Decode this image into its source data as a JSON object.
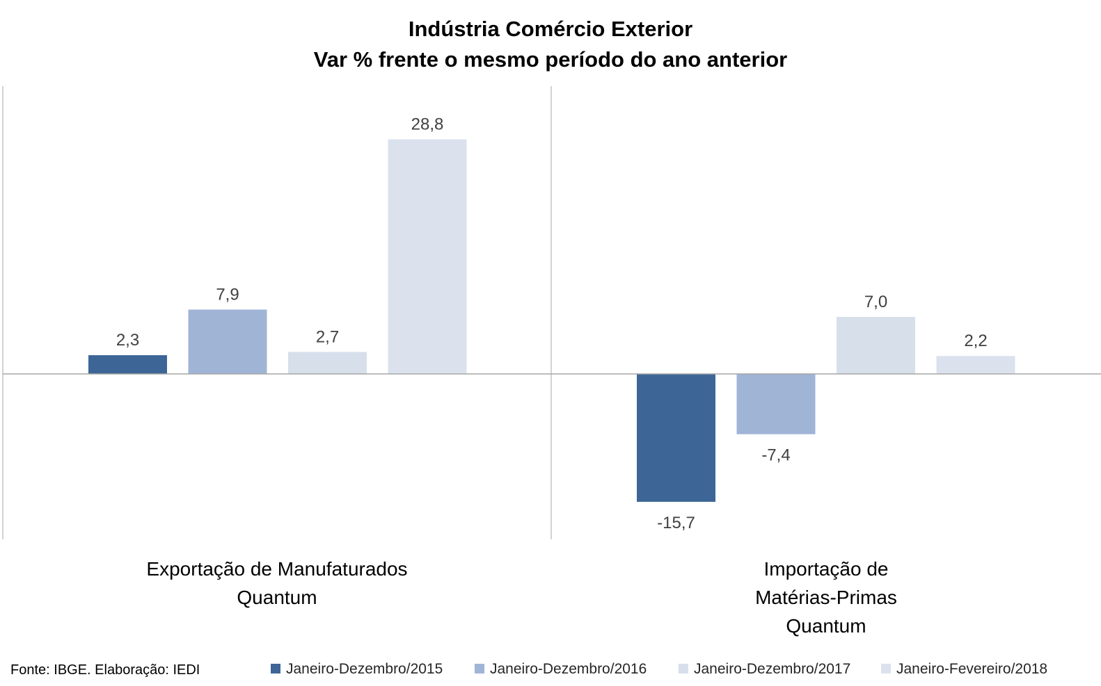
{
  "chart_data": {
    "type": "bar",
    "title_lines": [
      "Indústria Comércio Exterior",
      "Var % frente o mesmo período do ano anterior"
    ],
    "categories": [
      [
        "Exportação de Manufaturados",
        "Quantum"
      ],
      [
        "Importação de",
        "Matérias-Primas",
        "Quantum"
      ]
    ],
    "series": [
      {
        "name": "Janeiro-Dezembro/2015",
        "color": "#3d6697",
        "values": [
          2.3,
          -15.7
        ],
        "labels": [
          "2,3",
          "-15,7"
        ]
      },
      {
        "name": "Janeiro-Dezembro/2016",
        "color": "#a0b4d6",
        "values": [
          7.9,
          -7.4
        ],
        "labels": [
          "7,9",
          "-7,4"
        ]
      },
      {
        "name": "Janeiro-Dezembro/2017",
        "color": "#d7dfeb",
        "values": [
          2.7,
          7.0
        ],
        "labels": [
          "2,7",
          "7,0"
        ]
      },
      {
        "name": "Janeiro-Fevereiro/2018",
        "color": "#dbe2ee",
        "values": [
          28.8,
          2.2
        ],
        "labels": [
          "28,8",
          "2,2"
        ]
      }
    ],
    "ylim": [
      -20,
      35
    ],
    "legend_position": "bottom",
    "grid": false
  },
  "source": "Fonte: IBGE. Elaboração: IEDI"
}
